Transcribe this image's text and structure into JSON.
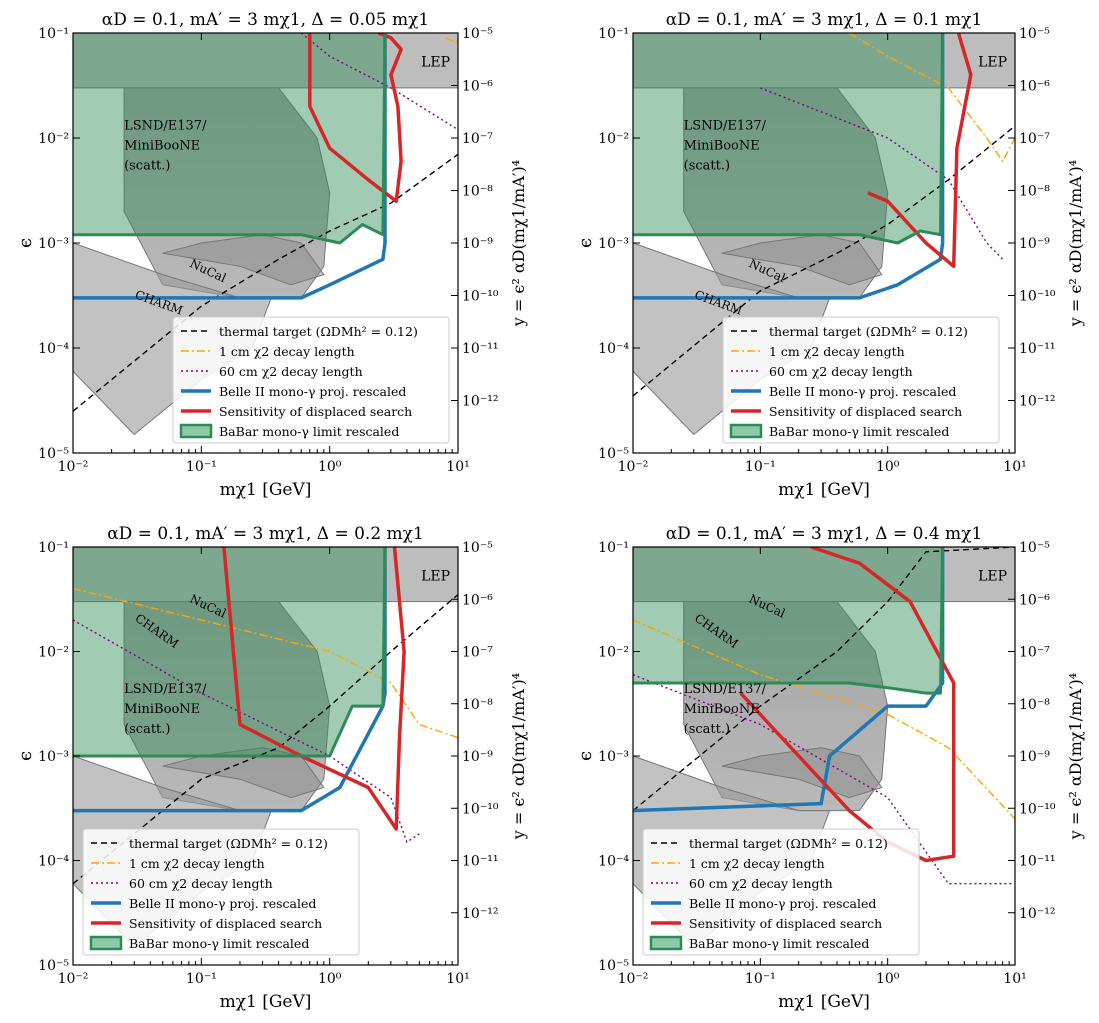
{
  "figure": {
    "panels": [
      {
        "title": "αD = 0.1, mA′ = 3 mχ1, Δ = 0.05 mχ1"
      },
      {
        "title": "αD = 0.1, mA′ = 3 mχ1, Δ = 0.1 mχ1"
      },
      {
        "title": "αD = 0.1, mA′ = 3 mχ1, Δ = 0.2 mχ1"
      },
      {
        "title": "αD = 0.1, mA′ = 3 mχ1, Δ = 0.4 mχ1"
      }
    ],
    "xlabel": "mχ1 [GeV]",
    "ylabel": "ϵ",
    "y2label": "y = ϵ² αD(mχ1/mA′)⁴",
    "xticks": [
      "10⁻²",
      "10⁻¹",
      "10⁰",
      "10¹"
    ],
    "yticks": [
      "10⁻⁵",
      "10⁻⁴",
      "10⁻³",
      "10⁻²",
      "10⁻¹"
    ],
    "y2ticks": [
      "10⁻¹²",
      "10⁻¹¹",
      "10⁻¹⁰",
      "10⁻⁹",
      "10⁻⁸",
      "10⁻⁷",
      "10⁻⁶",
      "10⁻⁵"
    ],
    "region_labels": {
      "lep": "LEP",
      "charm": "CHARM",
      "nucal": "NuCal",
      "lsnd": [
        "LSND/E137/",
        "MiniBooNE",
        "(scatt.)"
      ]
    },
    "legend": [
      {
        "label": "thermal target (ΩDMh² = 0.12)",
        "style": "dashed",
        "color": "#000000"
      },
      {
        "label": "1 cm χ2 decay length",
        "style": "dashdot",
        "color": "#ffa500"
      },
      {
        "label": "60 cm χ2 decay length",
        "style": "dotted",
        "color": "#800080"
      },
      {
        "label": "Belle II mono-γ proj. rescaled",
        "style": "solid",
        "color": "#1f77b4"
      },
      {
        "label": "Sensitivity of displaced search",
        "style": "solid",
        "color": "#d62728"
      },
      {
        "label": "BaBar mono-γ limit rescaled",
        "style": "patch",
        "color": "#2e8b57"
      }
    ]
  },
  "chart_data": [
    {
      "type": "line",
      "title": "αD = 0.1, mA′ = 3 mχ1, Δ = 0.05 mχ1",
      "xscale": "log",
      "yscale": "log",
      "xlim": [
        0.01,
        10
      ],
      "ylim": [
        1e-05,
        0.1
      ],
      "y2lim": [
        1e-13,
        1e-05
      ],
      "series": [
        {
          "name": "thermal target (ΩDMh² = 0.12)",
          "x": [
            0.01,
            0.1,
            0.4,
            1,
            3,
            10
          ],
          "y": [
            2.5e-05,
            0.00025,
            0.0007,
            0.0013,
            0.0024,
            0.007
          ]
        },
        {
          "name": "1 cm χ2 decay length",
          "x": [
            8,
            10
          ],
          "y": [
            0.09,
            0.08
          ]
        },
        {
          "name": "60 cm χ2 decay length",
          "x": [
            0.6,
            1,
            3,
            10
          ],
          "y": [
            0.1,
            0.06,
            0.03,
            0.012
          ]
        },
        {
          "name": "Belle II mono-γ proj. rescaled",
          "x": [
            0.01,
            0.1,
            0.6,
            1,
            2,
            2.6,
            2.7,
            2.7
          ],
          "y": [
            0.0003,
            0.0003,
            0.0003,
            0.0004,
            0.0006,
            0.0007,
            0.001,
            0.1
          ]
        },
        {
          "name": "Sensitivity of displaced search",
          "x": [
            0.7,
            0.7,
            1,
            2,
            3.3,
            3.6,
            3.4,
            3.0,
            3.6,
            3.0,
            2.4
          ],
          "y": [
            0.1,
            0.02,
            0.008,
            0.004,
            0.0025,
            0.006,
            0.02,
            0.04,
            0.07,
            0.09,
            0.1
          ]
        },
        {
          "name": "BaBar mono-γ limit rescaled",
          "x": [
            0.01,
            0.6,
            1.2,
            1.8,
            2.6,
            2.7
          ],
          "y": [
            0.0012,
            0.0012,
            0.001,
            0.0015,
            0.0012,
            0.1
          ]
        }
      ],
      "regions": [
        "LEP",
        "CHARM",
        "NuCal",
        "LSND/E137/MiniBooNE (scatt.)"
      ]
    },
    {
      "type": "line",
      "title": "αD = 0.1, mA′ = 3 mχ1, Δ = 0.1 mχ1",
      "xscale": "log",
      "yscale": "log",
      "xlim": [
        0.01,
        10
      ],
      "ylim": [
        1e-05,
        0.1
      ],
      "y2lim": [
        1e-13,
        1e-05
      ],
      "series": [
        {
          "name": "thermal target (ΩDMh² = 0.12)",
          "x": [
            0.01,
            0.1,
            0.4,
            1,
            3,
            10
          ],
          "y": [
            3.5e-05,
            0.00035,
            0.0008,
            0.0015,
            0.004,
            0.013
          ]
        },
        {
          "name": "1 cm χ2 decay length",
          "x": [
            0.5,
            1,
            3,
            6,
            8,
            10
          ],
          "y": [
            0.1,
            0.06,
            0.03,
            0.01,
            0.006,
            0.01
          ]
        },
        {
          "name": "60 cm χ2 decay length",
          "x": [
            0.1,
            1,
            3,
            6,
            8
          ],
          "y": [
            0.03,
            0.01,
            0.004,
            0.001,
            0.0007
          ]
        },
        {
          "name": "Belle II mono-γ proj. rescaled",
          "x": [
            0.01,
            0.6,
            1.2,
            2.6,
            2.7,
            2.7
          ],
          "y": [
            0.0003,
            0.0003,
            0.0004,
            0.0007,
            0.001,
            0.1
          ]
        },
        {
          "name": "Sensitivity of displaced search",
          "x": [
            0.7,
            1,
            2,
            3.3,
            3.5,
            4.5,
            3.6
          ],
          "y": [
            0.003,
            0.0025,
            0.001,
            0.0006,
            0.008,
            0.04,
            0.1
          ]
        },
        {
          "name": "BaBar mono-γ limit rescaled",
          "x": [
            0.01,
            0.6,
            1.2,
            1.8,
            2.6,
            2.7
          ],
          "y": [
            0.0012,
            0.0012,
            0.001,
            0.0013,
            0.0012,
            0.1
          ]
        }
      ],
      "regions": [
        "LEP",
        "CHARM",
        "NuCal",
        "LSND/E137/MiniBooNE (scatt.)"
      ]
    },
    {
      "type": "line",
      "title": "αD = 0.1, mA′ = 3 mχ1, Δ = 0.2 mχ1",
      "xscale": "log",
      "yscale": "log",
      "xlim": [
        0.01,
        10
      ],
      "ylim": [
        1e-05,
        0.1
      ],
      "y2lim": [
        1e-13,
        1e-05
      ],
      "series": [
        {
          "name": "thermal target (ΩDMh² = 0.12)",
          "x": [
            0.01,
            0.1,
            0.4,
            1,
            3,
            10
          ],
          "y": [
            6e-05,
            0.0006,
            0.0012,
            0.003,
            0.01,
            0.035
          ]
        },
        {
          "name": "1 cm χ2 decay length",
          "x": [
            0.01,
            0.1,
            1,
            3,
            5,
            10
          ],
          "y": [
            0.04,
            0.02,
            0.01,
            0.005,
            0.002,
            0.0015
          ]
        },
        {
          "name": "60 cm χ2 decay length",
          "x": [
            0.01,
            0.1,
            1,
            3,
            4,
            5
          ],
          "y": [
            0.02,
            0.004,
            0.001,
            0.0004,
            0.00015,
            0.00018
          ]
        },
        {
          "name": "Belle II mono-γ proj. rescaled",
          "x": [
            0.01,
            0.6,
            1.2,
            2.6,
            2.7,
            2.7
          ],
          "y": [
            0.0003,
            0.0003,
            0.0005,
            0.003,
            0.004,
            0.1
          ]
        },
        {
          "name": "Sensitivity of displaced search",
          "x": [
            0.15,
            0.2,
            0.6,
            2,
            3.3,
            3.5,
            3.8,
            3.5,
            3.2
          ],
          "y": [
            0.1,
            0.002,
            0.001,
            0.0005,
            0.0002,
            0.0015,
            0.01,
            0.03,
            0.1
          ]
        },
        {
          "name": "BaBar mono-γ limit rescaled",
          "x": [
            0.01,
            1,
            1.5,
            2.6,
            2.7
          ],
          "y": [
            0.001,
            0.001,
            0.003,
            0.003,
            0.1
          ]
        }
      ],
      "regions": [
        "LEP",
        "CHARM",
        "NuCal",
        "LSND/E137/MiniBooNE (scatt.)"
      ]
    },
    {
      "type": "line",
      "title": "αD = 0.1, mA′ = 3 mχ1, Δ = 0.4 mχ1",
      "xscale": "log",
      "yscale": "log",
      "xlim": [
        0.01,
        10
      ],
      "ylim": [
        1e-05,
        0.1
      ],
      "y2lim": [
        1e-13,
        1e-05
      ],
      "series": [
        {
          "name": "thermal target (ΩDMh² = 0.12)",
          "x": [
            0.01,
            0.1,
            0.4,
            1,
            2,
            10
          ],
          "y": [
            0.0003,
            0.003,
            0.01,
            0.03,
            0.09,
            0.1
          ]
        },
        {
          "name": "1 cm χ2 decay length",
          "x": [
            0.01,
            0.1,
            1,
            3,
            10
          ],
          "y": [
            0.02,
            0.006,
            0.0025,
            0.0012,
            0.00025
          ]
        },
        {
          "name": "60 cm χ2 decay length",
          "x": [
            0.01,
            0.1,
            1,
            3,
            10
          ],
          "y": [
            0.006,
            0.002,
            0.0004,
            6e-05,
            6e-05
          ]
        },
        {
          "name": "Belle II mono-γ proj. rescaled",
          "x": [
            0.01,
            0.3,
            0.35,
            1,
            2,
            2.7,
            2.7
          ],
          "y": [
            0.0003,
            0.00035,
            0.001,
            0.003,
            0.003,
            0.005,
            0.1
          ]
        },
        {
          "name": "Sensitivity of displaced search",
          "x": [
            0.07,
            0.2,
            0.5,
            1,
            2,
            3.3,
            3.3,
            1.5,
            0.6,
            0.25
          ],
          "y": [
            0.004,
            0.001,
            0.0003,
            0.00015,
            0.0001,
            0.00011,
            0.005,
            0.03,
            0.07,
            0.1
          ]
        },
        {
          "name": "BaBar mono-γ limit rescaled",
          "x": [
            0.01,
            0.5,
            1,
            2,
            2.6,
            2.7
          ],
          "y": [
            0.005,
            0.005,
            0.0045,
            0.004,
            0.004,
            0.1
          ]
        }
      ],
      "regions": [
        "LEP",
        "CHARM",
        "NuCal",
        "LSND/E137/MiniBooNE (scatt.)"
      ]
    }
  ]
}
